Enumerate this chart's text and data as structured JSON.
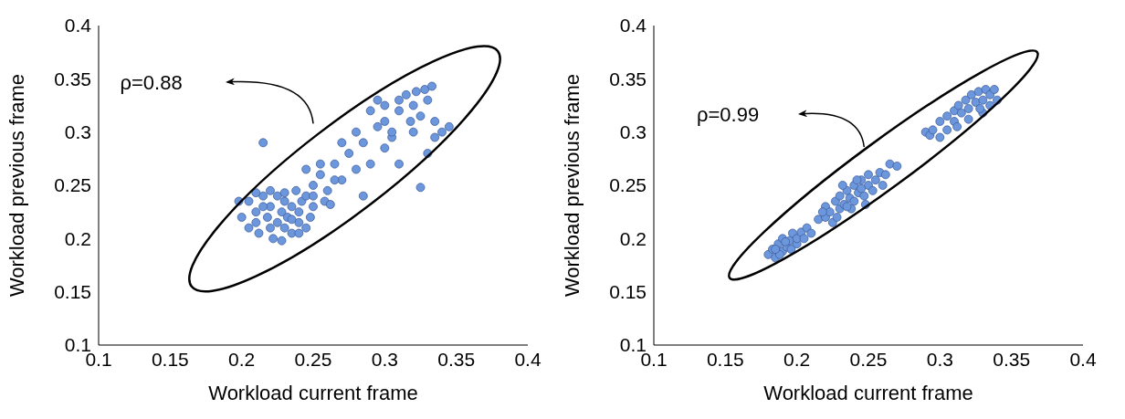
{
  "chart_data": [
    {
      "type": "scatter",
      "xlabel": "Workload current frame",
      "ylabel": "Workload previous frame",
      "xlim": [
        0.1,
        0.4
      ],
      "xticks": [
        0.1,
        0.15,
        0.2,
        0.25,
        0.3,
        0.35,
        0.4
      ],
      "ylim": [
        0.1,
        0.4
      ],
      "yticks": [
        0.1,
        0.15,
        0.2,
        0.25,
        0.3,
        0.35,
        0.4
      ],
      "grid": false,
      "legend": false,
      "marker": "circle",
      "annotations": [
        "ρ=0.88"
      ],
      "series": [
        {
          "color": "#6d97dd",
          "x": [
            0.205,
            0.21,
            0.21,
            0.212,
            0.215,
            0.218,
            0.22,
            0.22,
            0.222,
            0.225,
            0.225,
            0.228,
            0.23,
            0.23,
            0.232,
            0.235,
            0.235,
            0.238,
            0.24,
            0.24,
            0.242,
            0.245,
            0.245,
            0.248,
            0.25,
            0.2,
            0.205,
            0.198,
            0.215,
            0.228,
            0.215,
            0.22,
            0.235,
            0.21,
            0.23,
            0.24,
            0.25,
            0.255,
            0.26,
            0.265,
            0.258,
            0.27,
            0.275,
            0.28,
            0.265,
            0.285,
            0.27,
            0.28,
            0.255,
            0.29,
            0.245,
            0.262,
            0.285,
            0.25,
            0.29,
            0.295,
            0.3,
            0.3,
            0.305,
            0.31,
            0.31,
            0.315,
            0.32,
            0.32,
            0.325,
            0.328,
            0.33,
            0.33,
            0.335,
            0.34,
            0.345,
            0.325,
            0.31,
            0.3,
            0.295,
            0.335,
            0.318,
            0.305,
            0.322,
            0.333
          ],
          "values": [
            0.235,
            0.225,
            0.215,
            0.205,
            0.24,
            0.22,
            0.21,
            0.23,
            0.2,
            0.215,
            0.24,
            0.225,
            0.21,
            0.235,
            0.22,
            0.205,
            0.23,
            0.245,
            0.215,
            0.225,
            0.235,
            0.21,
            0.24,
            0.22,
            0.23,
            0.22,
            0.21,
            0.235,
            0.23,
            0.198,
            0.29,
            0.245,
            0.218,
            0.243,
            0.243,
            0.205,
            0.25,
            0.26,
            0.245,
            0.27,
            0.235,
            0.255,
            0.28,
            0.265,
            0.255,
            0.29,
            0.29,
            0.3,
            0.27,
            0.27,
            0.265,
            0.232,
            0.24,
            0.24,
            0.32,
            0.33,
            0.325,
            0.31,
            0.295,
            0.33,
            0.32,
            0.335,
            0.3,
            0.325,
            0.315,
            0.34,
            0.33,
            0.28,
            0.31,
            0.3,
            0.305,
            0.248,
            0.27,
            0.285,
            0.305,
            0.295,
            0.31,
            0.3,
            0.338,
            0.343
          ]
        }
      ]
    },
    {
      "type": "scatter",
      "xlabel": "Workload current frame",
      "ylabel": "Workload previous frame",
      "xlim": [
        0.1,
        0.4
      ],
      "xticks": [
        0.1,
        0.15,
        0.2,
        0.25,
        0.3,
        0.35,
        0.4
      ],
      "ylim": [
        0.1,
        0.4
      ],
      "yticks": [
        0.1,
        0.15,
        0.2,
        0.25,
        0.3,
        0.35,
        0.4
      ],
      "grid": false,
      "legend": false,
      "marker": "circle",
      "annotations": [
        "ρ=0.99"
      ],
      "series": [
        {
          "color": "#6d97dd",
          "x": [
            0.18,
            0.183,
            0.185,
            0.187,
            0.19,
            0.19,
            0.193,
            0.195,
            0.197,
            0.2,
            0.2,
            0.203,
            0.205,
            0.207,
            0.188,
            0.196,
            0.21,
            0.185,
            0.192,
            0.215,
            0.22,
            0.22,
            0.223,
            0.225,
            0.227,
            0.23,
            0.23,
            0.233,
            0.235,
            0.237,
            0.24,
            0.24,
            0.243,
            0.245,
            0.247,
            0.25,
            0.25,
            0.253,
            0.255,
            0.258,
            0.26,
            0.262,
            0.265,
            0.27,
            0.228,
            0.238,
            0.248,
            0.232,
            0.242,
            0.218,
            0.245,
            0.235,
            0.29,
            0.293,
            0.295,
            0.3,
            0.3,
            0.305,
            0.31,
            0.31,
            0.313,
            0.315,
            0.318,
            0.32,
            0.322,
            0.325,
            0.327,
            0.33,
            0.332,
            0.335,
            0.335,
            0.338,
            0.33,
            0.32,
            0.312,
            0.34,
            0.328,
            0.305
          ],
          "values": [
            0.185,
            0.19,
            0.182,
            0.195,
            0.188,
            0.2,
            0.192,
            0.198,
            0.205,
            0.195,
            0.2,
            0.206,
            0.2,
            0.21,
            0.185,
            0.19,
            0.205,
            0.19,
            0.197,
            0.218,
            0.22,
            0.23,
            0.225,
            0.215,
            0.235,
            0.228,
            0.24,
            0.232,
            0.245,
            0.238,
            0.235,
            0.25,
            0.243,
            0.255,
            0.24,
            0.25,
            0.26,
            0.245,
            0.255,
            0.262,
            0.25,
            0.26,
            0.27,
            0.268,
            0.22,
            0.228,
            0.232,
            0.25,
            0.255,
            0.225,
            0.247,
            0.23,
            0.3,
            0.297,
            0.302,
            0.295,
            0.31,
            0.315,
            0.32,
            0.31,
            0.325,
            0.318,
            0.33,
            0.322,
            0.335,
            0.328,
            0.338,
            0.33,
            0.34,
            0.335,
            0.325,
            0.34,
            0.318,
            0.312,
            0.305,
            0.33,
            0.322,
            0.302
          ]
        }
      ]
    }
  ]
}
